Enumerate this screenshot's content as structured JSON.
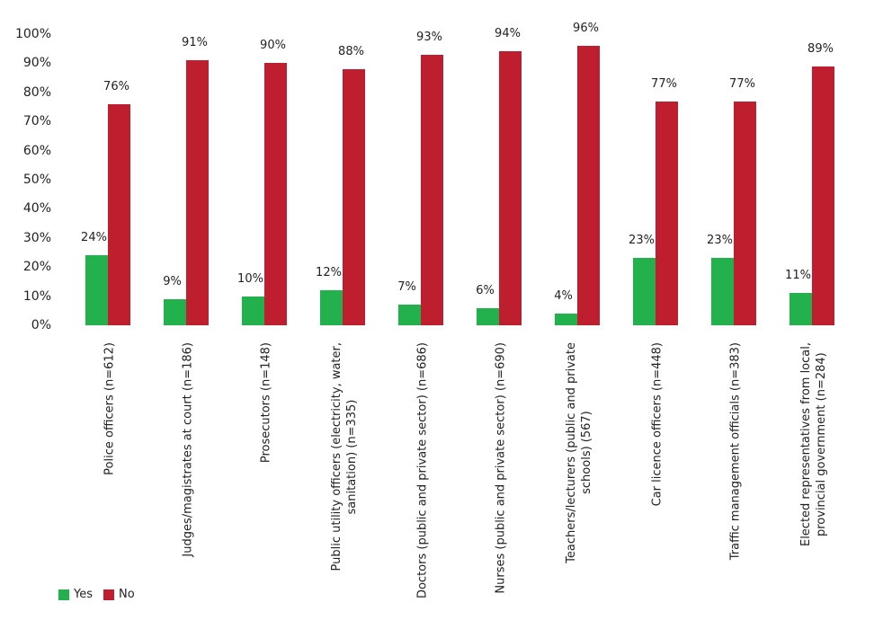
{
  "chart_data": {
    "type": "bar",
    "title": "",
    "xlabel": "",
    "ylabel": "",
    "ylim": [
      0,
      100
    ],
    "yticks": [
      "0%",
      "10%",
      "20%",
      "30%",
      "40%",
      "50%",
      "60%",
      "70%",
      "80%",
      "90%",
      "100%"
    ],
    "categories": [
      [
        "Police officers (n=612)"
      ],
      [
        "Judges/magistrates at court (n=186)"
      ],
      [
        "Prosecutors (n=148)"
      ],
      [
        "Public utility officers (electricity, water,",
        "sanitation) (n=335)"
      ],
      [
        "Doctors (public and private sector) (n=686)"
      ],
      [
        "Nurses (public and private sector) (n=690)"
      ],
      [
        "Teachers/lecturers (public and private",
        "schools) (567)"
      ],
      [
        "Car licence officers (n=448)"
      ],
      [
        "Traffic management officials (n=383)"
      ],
      [
        "Elected representatives from local,",
        "provincial government (n=284)"
      ]
    ],
    "series": [
      {
        "name": "Yes",
        "color": "#22b14c",
        "values": [
          24,
          9,
          10,
          12,
          7,
          6,
          4,
          23,
          23,
          11
        ]
      },
      {
        "name": "No",
        "color": "#be1e2d",
        "values": [
          76,
          91,
          90,
          88,
          93,
          94,
          96,
          77,
          77,
          89
        ]
      }
    ],
    "legend_position": "bottom-left",
    "grid": false
  }
}
